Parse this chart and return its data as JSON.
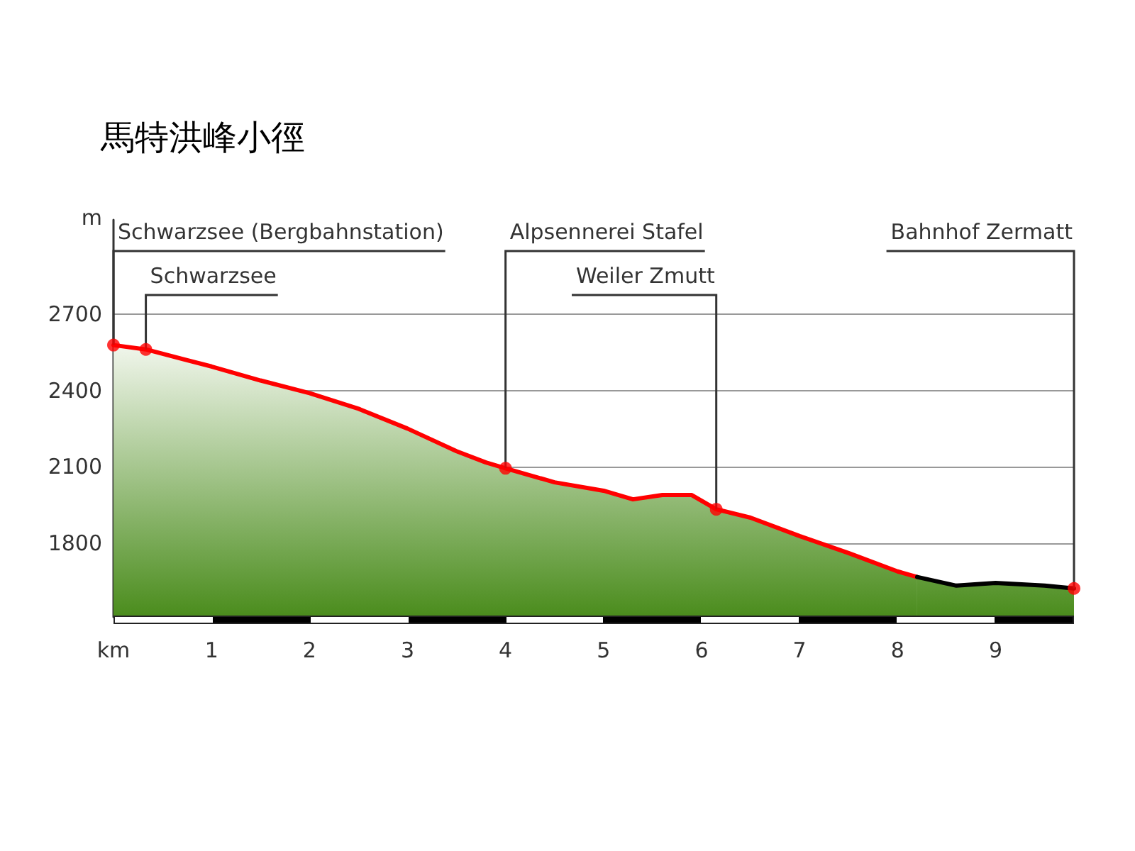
{
  "chart_data": {
    "type": "area",
    "title": "馬特洪峰小徑",
    "xlabel": "km",
    "ylabel": "m",
    "xlim": [
      0,
      9.8
    ],
    "ylim": [
      1510,
      3070
    ],
    "xticks": [
      1,
      2,
      3,
      4,
      5,
      6,
      7,
      8,
      9
    ],
    "yticks": [
      1800,
      2100,
      2400,
      2700
    ],
    "grid": true,
    "line_style": "solid",
    "series": [
      {
        "color": "#ff0000",
        "x": [
          0,
          0.33,
          1,
          1.5,
          2,
          2.5,
          3,
          3.5,
          3.8,
          4.0,
          4.5,
          5,
          5.3,
          5.6,
          5.9,
          6.15,
          6.5,
          7,
          7.5,
          8,
          8.2
        ],
        "values": [
          2578,
          2561,
          2494,
          2439,
          2389,
          2328,
          2250,
          2161,
          2117,
          2094,
          2039,
          2006,
          1972,
          1989,
          1989,
          1933,
          1900,
          1828,
          1761,
          1689,
          1667
        ]
      },
      {
        "color": "#000000",
        "x": [
          8.2,
          8.6,
          9,
          9.5,
          9.8
        ],
        "values": [
          1667,
          1633,
          1644,
          1633,
          1622
        ]
      },
      {
        "type": "scatter",
        "color": "#ff0000",
        "marker": "circle",
        "x": [
          0,
          0.33,
          4.0,
          6.15,
          9.8
        ],
        "values": [
          2578,
          2561,
          2094,
          1933,
          1622
        ]
      }
    ],
    "annotations": [
      {
        "text": "Schwarzsee (Bergbahnstation)",
        "x": 0,
        "y": 2578
      },
      {
        "text": "Schwarzsee",
        "x": 0.33,
        "y": 2561
      },
      {
        "text": "Alpsennerei Stafel",
        "x": 4.0,
        "y": 2094
      },
      {
        "text": "Weiler Zmutt",
        "x": 6.15,
        "y": 1933
      },
      "Bahnhof Zermatt"
    ]
  }
}
